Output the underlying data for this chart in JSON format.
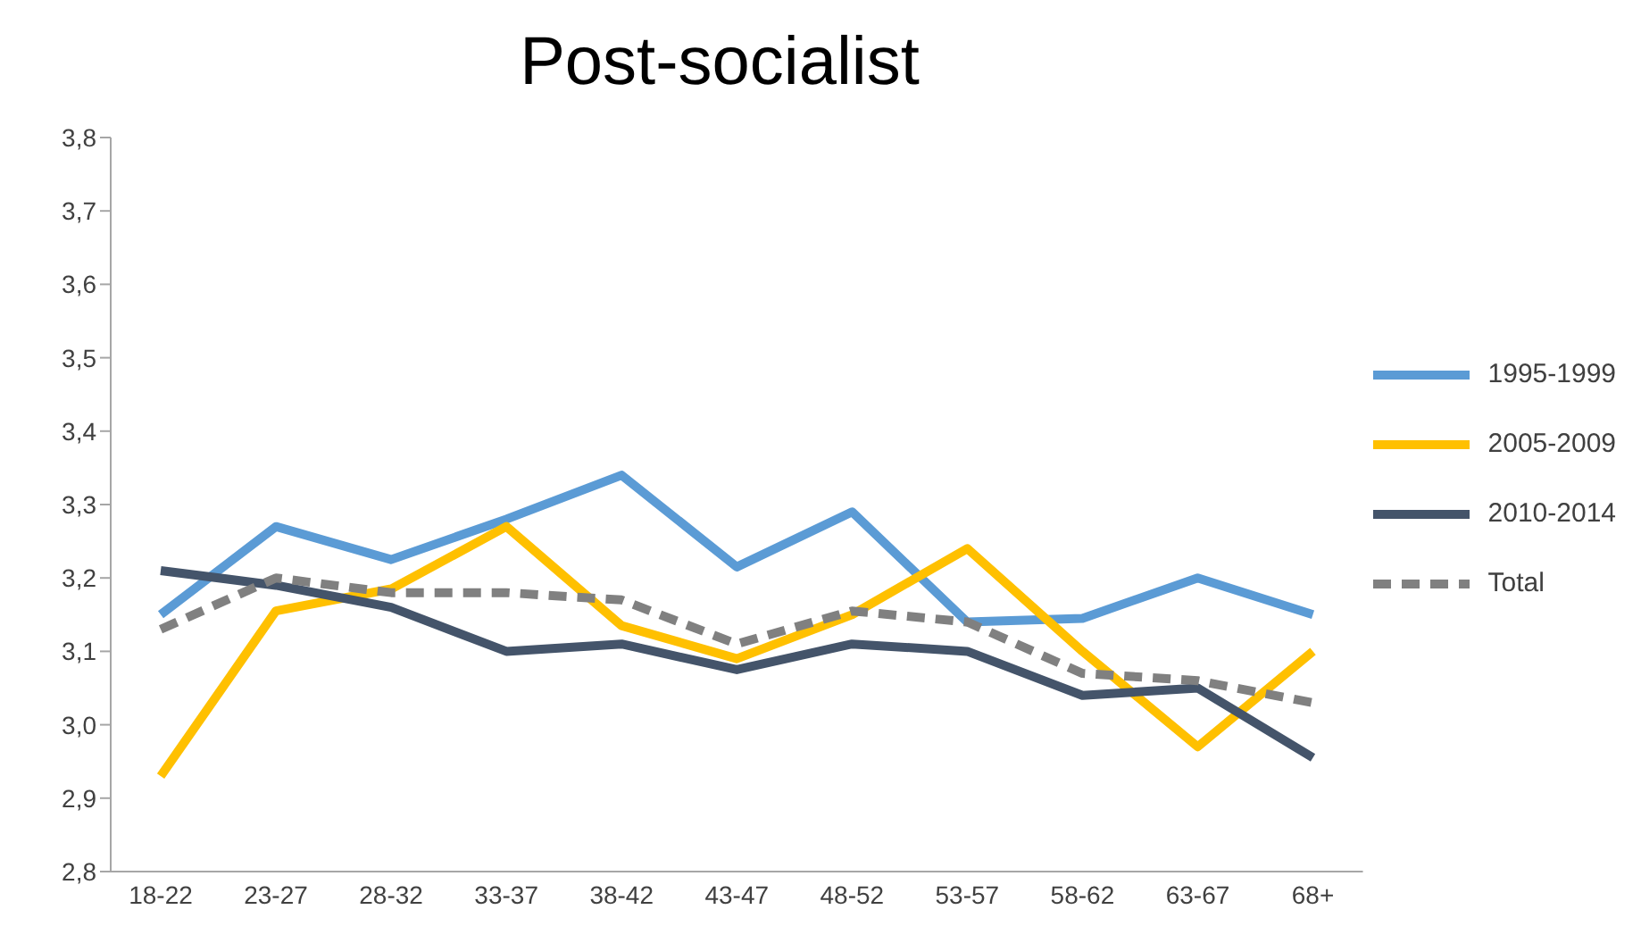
{
  "chart_data": {
    "type": "line",
    "title": "Post-socialist",
    "categories": [
      "18-22",
      "23-27",
      "28-32",
      "33-37",
      "38-42",
      "43-47",
      "48-52",
      "53-57",
      "58-62",
      "63-67",
      "68+"
    ],
    "series": [
      {
        "name": "1995-1999",
        "color": "#5b9bd5",
        "values": [
          3.15,
          3.27,
          3.225,
          3.28,
          3.34,
          3.215,
          3.29,
          3.14,
          3.145,
          3.2,
          3.15
        ]
      },
      {
        "name": "2005-2009",
        "color": "#ffc000",
        "values": [
          2.93,
          3.155,
          3.185,
          3.27,
          3.135,
          3.09,
          3.15,
          3.24,
          3.1,
          2.97,
          3.1
        ]
      },
      {
        "name": "2010-2014",
        "color": "#44546a",
        "values": [
          3.21,
          3.19,
          3.16,
          3.1,
          3.11,
          3.075,
          3.11,
          3.1,
          3.04,
          3.05,
          2.955
        ]
      },
      {
        "name": "Total",
        "color": "#808080",
        "line_style": "dashed",
        "values": [
          3.13,
          3.2,
          3.18,
          3.18,
          3.17,
          3.11,
          3.155,
          3.14,
          3.07,
          3.06,
          3.03
        ]
      }
    ],
    "ylim": [
      2.8,
      3.8
    ],
    "yticks": [
      {
        "value": 2.8,
        "label": "2,8"
      },
      {
        "value": 2.9,
        "label": "2,9"
      },
      {
        "value": 3.0,
        "label": "3,0"
      },
      {
        "value": 3.1,
        "label": "3,1"
      },
      {
        "value": 3.2,
        "label": "3,2"
      },
      {
        "value": 3.3,
        "label": "3,3"
      },
      {
        "value": 3.4,
        "label": "3,4"
      },
      {
        "value": 3.5,
        "label": "3,5"
      },
      {
        "value": 3.6,
        "label": "3,6"
      },
      {
        "value": 3.7,
        "label": "3,7"
      },
      {
        "value": 3.8,
        "label": "3,8"
      }
    ],
    "grid": false,
    "legend": "right",
    "marker": "none",
    "line_style": "solid"
  }
}
